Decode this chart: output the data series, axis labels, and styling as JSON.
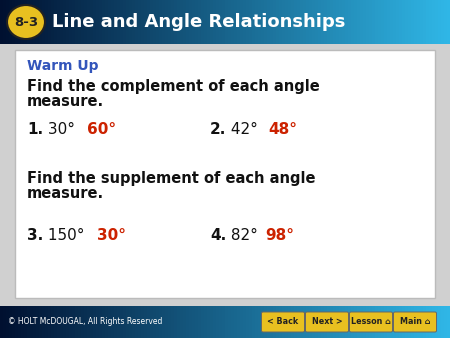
{
  "header_bg": "#3ab0e0",
  "header_text": "Line and Angle Relationships",
  "header_badge_bg": "#e8c020",
  "header_badge_text": "8-3",
  "header_badge_outline": "#222222",
  "footer_text": "© HOLT McDOUGAL, All Rights Reserved",
  "footer_buttons": [
    "< Back",
    "Next >",
    "Lesson",
    "Main"
  ],
  "footer_btn_color": "#e8c020",
  "warm_up_color": "#3355bb",
  "warm_up_label": "Warm Up",
  "instruction1": "Find the complement of each angle",
  "instruction1b": "measure.",
  "q1_num": "1.",
  "q1_angle": " 30°",
  "q1_answer": "60°",
  "q2_num": "2.",
  "q2_angle": " 42°",
  "q2_answer": "48°",
  "instruction2": "Find the supplement of each angle",
  "instruction2b": "measure.",
  "q3_num": "3.",
  "q3_angle": " 150°",
  "q3_answer": "30°",
  "q4_num": "4.",
  "q4_angle": " 82°",
  "q4_answer": "98°",
  "answer_color": "#cc2200",
  "black": "#111111",
  "white": "#ffffff",
  "box_bg": "#ffffff",
  "box_border": "#bbbbbb",
  "main_bg": "#d0d0d0"
}
